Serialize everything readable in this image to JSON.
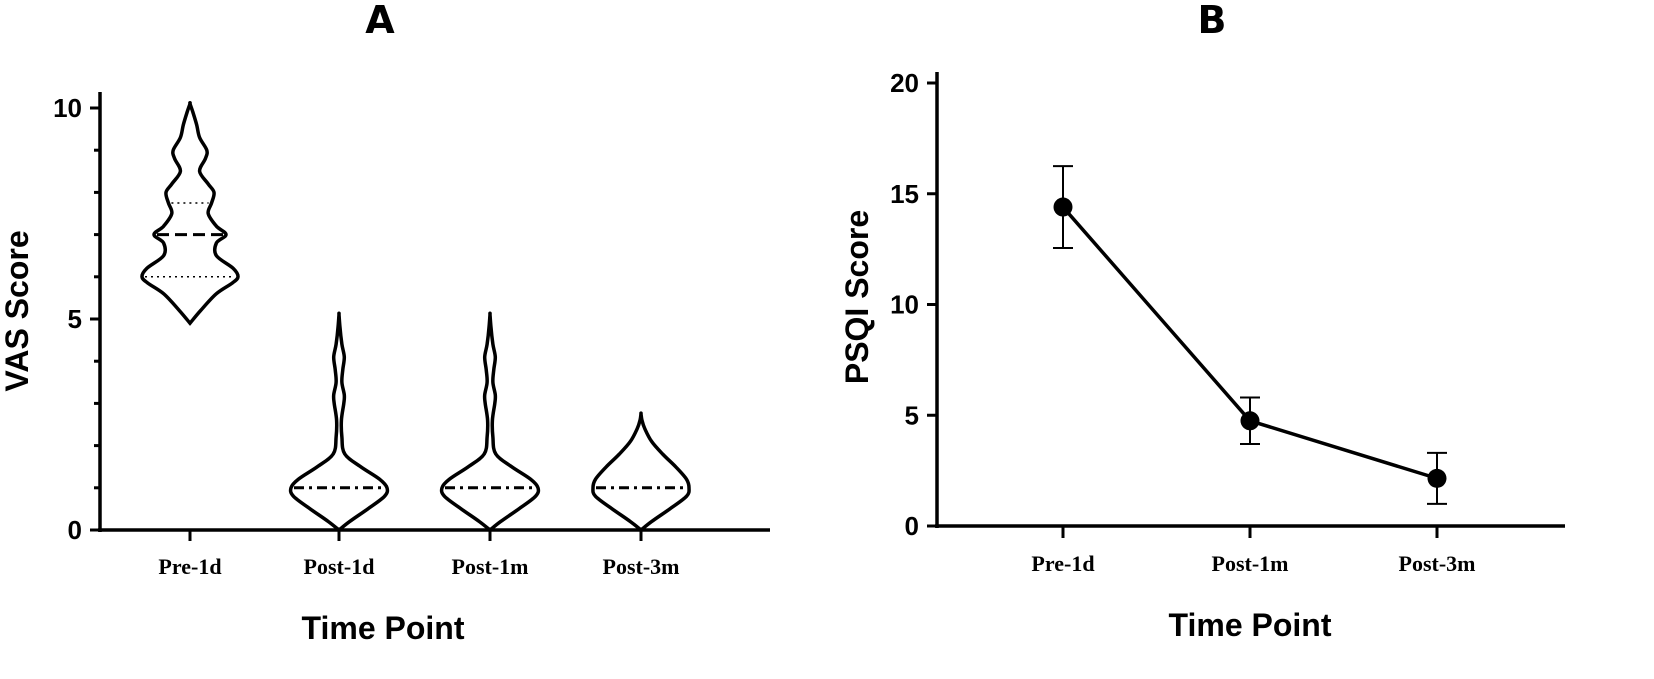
{
  "chart_data": [
    {
      "type": "violin",
      "panel_label": "A",
      "xlabel": "Time Point",
      "ylabel": "VAS Score",
      "categories": [
        "Pre-1d",
        "Post-1d",
        "Post-1m",
        "Post-3m"
      ],
      "ylim": [
        0,
        10
      ],
      "yticks": [
        0,
        5,
        10
      ],
      "y_minor_ticks": [
        1,
        2,
        3,
        4,
        6,
        7,
        8,
        9
      ],
      "grid": false,
      "legend": "none",
      "violins": [
        {
          "category": "Pre-1d",
          "min": 4.9,
          "max": 10.1,
          "q1": 6,
          "median": 7,
          "q3": 7.75,
          "density": [
            [
              4.9,
              0
            ],
            [
              5.2,
              0.22
            ],
            [
              5.6,
              0.55
            ],
            [
              5.85,
              0.88
            ],
            [
              6.0,
              1.0
            ],
            [
              6.2,
              0.9
            ],
            [
              6.5,
              0.55
            ],
            [
              6.8,
              0.55
            ],
            [
              7.0,
              0.75
            ],
            [
              7.2,
              0.55
            ],
            [
              7.5,
              0.38
            ],
            [
              7.75,
              0.45
            ],
            [
              8.0,
              0.5
            ],
            [
              8.2,
              0.38
            ],
            [
              8.5,
              0.2
            ],
            [
              8.8,
              0.32
            ],
            [
              9.0,
              0.35
            ],
            [
              9.3,
              0.2
            ],
            [
              9.6,
              0.14
            ],
            [
              9.9,
              0.06
            ],
            [
              10.1,
              0
            ]
          ]
        },
        {
          "category": "Post-1d",
          "min": 0,
          "max": 5.1,
          "q1": 1,
          "median": 1,
          "q3": 1,
          "density": [
            [
              0.0,
              0
            ],
            [
              0.2,
              0.22
            ],
            [
              0.5,
              0.6
            ],
            [
              0.8,
              0.95
            ],
            [
              1.0,
              1.0
            ],
            [
              1.2,
              0.85
            ],
            [
              1.5,
              0.45
            ],
            [
              1.8,
              0.12
            ],
            [
              2.2,
              0.06
            ],
            [
              2.6,
              0.05
            ],
            [
              3.0,
              0.1
            ],
            [
              3.2,
              0.11
            ],
            [
              3.5,
              0.06
            ],
            [
              3.8,
              0.08
            ],
            [
              4.1,
              0.11
            ],
            [
              4.4,
              0.06
            ],
            [
              4.8,
              0.02
            ],
            [
              5.1,
              0
            ]
          ]
        },
        {
          "category": "Post-1m",
          "min": 0,
          "max": 5.1,
          "q1": 1,
          "median": 1,
          "q3": 1,
          "density": [
            [
              0.0,
              0
            ],
            [
              0.2,
              0.22
            ],
            [
              0.5,
              0.6
            ],
            [
              0.8,
              0.95
            ],
            [
              1.0,
              1.0
            ],
            [
              1.2,
              0.85
            ],
            [
              1.5,
              0.45
            ],
            [
              1.8,
              0.12
            ],
            [
              2.2,
              0.06
            ],
            [
              2.6,
              0.05
            ],
            [
              3.0,
              0.1
            ],
            [
              3.2,
              0.11
            ],
            [
              3.5,
              0.06
            ],
            [
              3.8,
              0.08
            ],
            [
              4.1,
              0.11
            ],
            [
              4.4,
              0.06
            ],
            [
              4.8,
              0.02
            ],
            [
              5.1,
              0
            ]
          ]
        },
        {
          "category": "Post-3m",
          "min": 0,
          "max": 2.75,
          "q1": 1,
          "median": 1,
          "q3": 1,
          "density": [
            [
              0.0,
              0
            ],
            [
              0.2,
              0.22
            ],
            [
              0.5,
              0.6
            ],
            [
              0.8,
              0.95
            ],
            [
              1.0,
              1.0
            ],
            [
              1.2,
              0.95
            ],
            [
              1.5,
              0.72
            ],
            [
              1.8,
              0.45
            ],
            [
              2.1,
              0.22
            ],
            [
              2.4,
              0.08
            ],
            [
              2.6,
              0.02
            ],
            [
              2.75,
              0
            ]
          ]
        }
      ]
    },
    {
      "type": "line",
      "panel_label": "B",
      "xlabel": "Time Point",
      "ylabel": "PSQI Score",
      "categories": [
        "Pre-1d",
        "Post-1m",
        "Post-3m"
      ],
      "ylim": [
        0,
        20
      ],
      "yticks": [
        0,
        5,
        10,
        15,
        20
      ],
      "grid": false,
      "legend": "none",
      "series": [
        {
          "values": [
            14.4,
            4.75,
            2.15
          ],
          "error": [
            1.85,
            1.05,
            1.15
          ],
          "marker": "circle",
          "color": "#000000"
        }
      ]
    }
  ]
}
